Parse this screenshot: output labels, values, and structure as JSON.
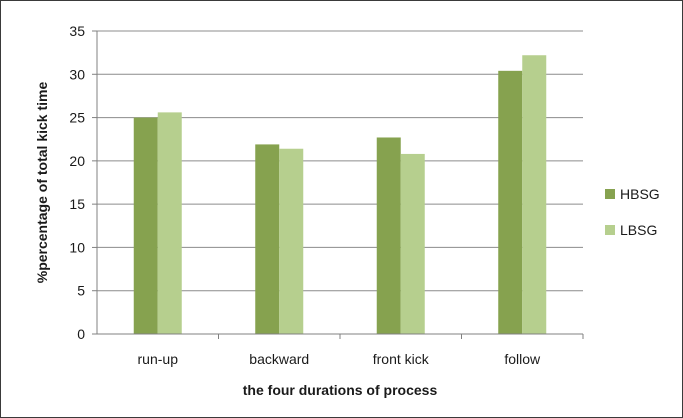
{
  "chart_data": {
    "type": "bar",
    "title": "",
    "xlabel": "the four durations of process",
    "ylabel": "%percentage of total kick time",
    "ylim": [
      0,
      35
    ],
    "yticks": [
      "0",
      "5",
      "10",
      "15",
      "20",
      "25",
      "30",
      "35"
    ],
    "categories": [
      "run-up",
      "backward",
      "front kick",
      "follow"
    ],
    "series": [
      {
        "name": "HBSG",
        "color": "#86a24f",
        "values": [
          25.0,
          21.9,
          22.7,
          30.4
        ]
      },
      {
        "name": "LBSG",
        "color": "#b6cf8e",
        "values": [
          25.6,
          21.4,
          20.8,
          32.2
        ]
      }
    ],
    "grid": true,
    "legend_position": "right"
  }
}
